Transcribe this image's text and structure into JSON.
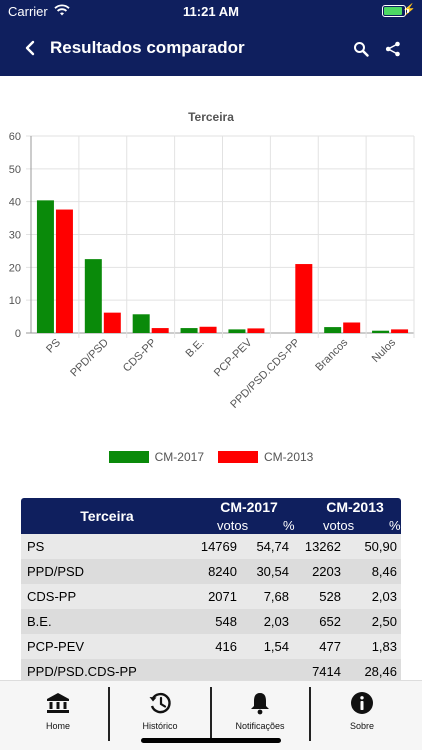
{
  "status_bar": {
    "carrier": "Carrier",
    "time": "11:21 AM",
    "battery_level": 0.9
  },
  "header": {
    "title": "Resultados comparador",
    "back_icon": "chevron-left-icon",
    "search_icon": "search-icon",
    "share_icon": "share-icon"
  },
  "chart_data": {
    "type": "bar",
    "title": "Terceira",
    "categories": [
      "PS",
      "PPD/PSD",
      "CDS-PP",
      "B.E.",
      "PCP-PEV",
      "PPD/PSD.CDS-PP",
      "Brancos",
      "Nulos"
    ],
    "series": [
      {
        "name": "CM-2017",
        "color": "#0a8a0a",
        "values": [
          40.4,
          22.5,
          5.7,
          1.5,
          1.1,
          0,
          1.8,
          0.7
        ]
      },
      {
        "name": "CM-2013",
        "color": "#ff0000",
        "values": [
          37.6,
          6.2,
          1.5,
          1.9,
          1.4,
          21.0,
          3.2,
          1.1
        ]
      }
    ],
    "yticks": [
      0,
      10,
      20,
      30,
      40,
      50,
      60
    ],
    "ylim": [
      0,
      60
    ],
    "grid": true,
    "legend": "bottom"
  },
  "table": {
    "region": "Terceira",
    "group1": "CM-2017",
    "group2": "CM-2013",
    "sub_votes": "votos",
    "sub_pct": "%",
    "rows": [
      {
        "name": "PS",
        "v1": "14769",
        "p1": "54,74",
        "v2": "13262",
        "p2": "50,90"
      },
      {
        "name": "PPD/PSD",
        "v1": "8240",
        "p1": "30,54",
        "v2": "2203",
        "p2": "8,46"
      },
      {
        "name": "CDS-PP",
        "v1": "2071",
        "p1": "7,68",
        "v2": "528",
        "p2": "2,03"
      },
      {
        "name": "B.E.",
        "v1": "548",
        "p1": "2,03",
        "v2": "652",
        "p2": "2,50"
      },
      {
        "name": "PCP-PEV",
        "v1": "416",
        "p1": "1,54",
        "v2": "477",
        "p2": "1,83"
      },
      {
        "name": "PPD/PSD.CDS-PP",
        "v1": "",
        "p1": "",
        "v2": "7414",
        "p2": "28,46"
      }
    ]
  },
  "tabs": [
    {
      "label": "Home",
      "icon": "bank-icon"
    },
    {
      "label": "Histórico",
      "icon": "history-icon"
    },
    {
      "label": "Notificações",
      "icon": "bell-icon"
    },
    {
      "label": "Sobre",
      "icon": "info-icon"
    }
  ]
}
